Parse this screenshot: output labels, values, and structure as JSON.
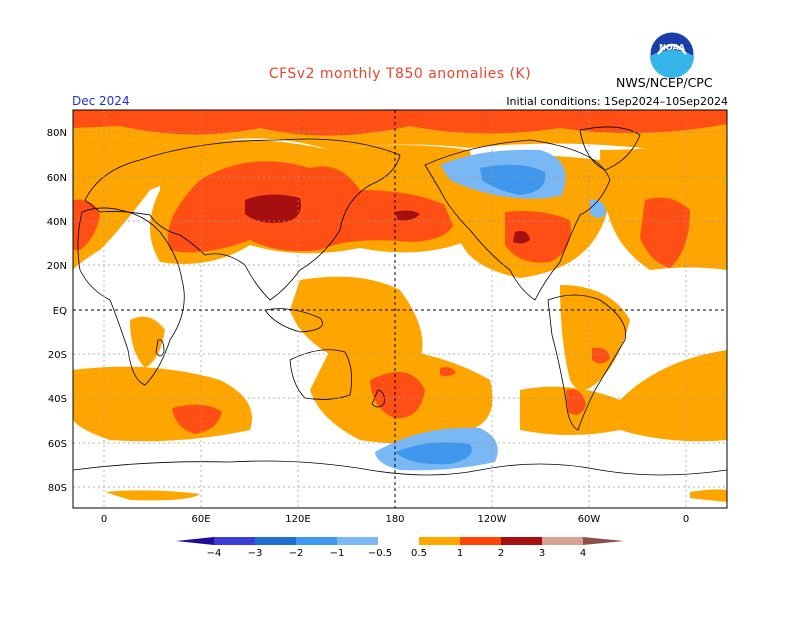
{
  "header": {
    "title": "CFSv2 monthly T850 anomalies (K)",
    "month": "Dec 2024",
    "initial_conditions": "Initial conditions: 1Sep2024–10Sep2024",
    "agency": "NWS/NCEP/CPC",
    "logo_text": "NOAA"
  },
  "axes": {
    "lat_labels": [
      "80N",
      "60N",
      "40N",
      "20N",
      "EQ",
      "20S",
      "40S",
      "60S",
      "80S"
    ],
    "lon_labels": [
      "0",
      "60E",
      "120E",
      "180",
      "120W",
      "60W",
      "0"
    ]
  },
  "legend": {
    "tick_labels": [
      "−4",
      "−3",
      "−2",
      "−1",
      "−0.5",
      "0.5",
      "1",
      "2",
      "3",
      "4"
    ],
    "colors": [
      "#1e0c9a",
      "#3c3cd6",
      "#1f6fd2",
      "#3f98ee",
      "#7ab8f5",
      "#ffffff",
      "#ffa500",
      "#ff4500",
      "#e62c10",
      "#a50f0f",
      "#d8a090",
      "#8a5048"
    ]
  },
  "map_colors": {
    "ocean_background": "#ffffff",
    "anom_0_5_to_1": "#ffa500",
    "anom_1_to_2": "#ff4f14",
    "anom_2_to_3": "#a50f0f",
    "anom_neg_0_5_to_neg_1": "#7ab8f5",
    "anom_neg_1_to_neg_2": "#3f98ee",
    "coastline": "#000000"
  }
}
